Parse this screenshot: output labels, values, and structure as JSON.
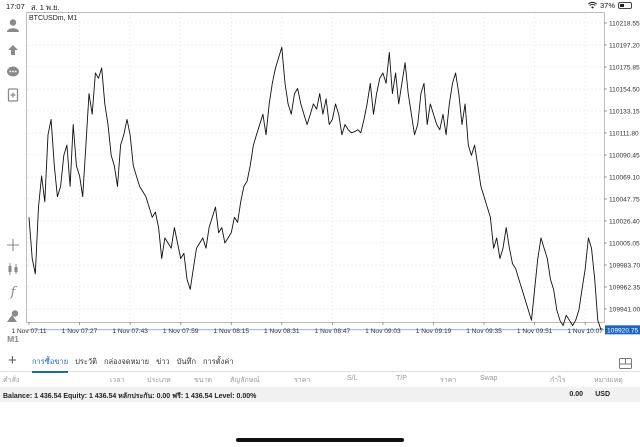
{
  "status_bar": {
    "time": "17:07",
    "date": "ส. 1 พ.ย.",
    "battery": "37%",
    "battery_level": 0.37
  },
  "toolbar": {
    "items": [
      "account-icon",
      "trade-icon",
      "chat-icon",
      "new-order-icon",
      "crosshair-icon",
      "candlestick-icon",
      "indicator-icon",
      "objects-icon",
      "timeframe"
    ],
    "timeframe_label": "M1"
  },
  "chart": {
    "symbol_label": "BTCUSDm, M1",
    "line_color": "#111111",
    "grid_color": "#e6e6e6",
    "bid_line_color": "#1e64c8",
    "current_price": "109920.75",
    "y_ticks": [
      "110218.55",
      "110197.20",
      "110175.85",
      "110154.50",
      "110133.15",
      "110111.80",
      "110090.45",
      "110069.10",
      "110047.75",
      "110026.40",
      "110005.05",
      "109983.70",
      "109962.35",
      "109941.00"
    ],
    "x_ticks": [
      "1 Nov 07:11",
      "1 Nov 07:27",
      "1 Nov 07:43",
      "1 Nov 07:59",
      "1 Nov 08:15",
      "1 Nov 08:31",
      "1 Nov 08:47",
      "1 Nov 09:03",
      "1 Nov 09:19",
      "1 Nov 09:35",
      "1 Nov 09:51",
      "1 Nov 10:07"
    ]
  },
  "chart_data": {
    "type": "line",
    "title": "BTCUSDm, M1",
    "xlabel": "",
    "ylabel": "",
    "ylim": [
      109920,
      110230
    ],
    "grid": true,
    "current_price": 109920.75,
    "y_ticks": [
      110218.55,
      110197.2,
      110175.85,
      110154.5,
      110133.15,
      110111.8,
      110090.45,
      110069.1,
      110047.75,
      110026.4,
      110005.05,
      109983.7,
      109962.35,
      109941.0
    ],
    "x_ticks": [
      "1 Nov 07:11",
      "1 Nov 07:27",
      "1 Nov 07:43",
      "1 Nov 07:59",
      "1 Nov 08:15",
      "1 Nov 08:31",
      "1 Nov 08:47",
      "1 Nov 09:03",
      "1 Nov 09:19",
      "1 Nov 09:35",
      "1 Nov 09:51",
      "1 Nov 10:07"
    ],
    "x_minutes_from_start": [
      0,
      1,
      2,
      3,
      4,
      5,
      6,
      7,
      8,
      9,
      10,
      11,
      12,
      13,
      14,
      15,
      16,
      17,
      18,
      19,
      20,
      21,
      22,
      23,
      24,
      25,
      26,
      27,
      28,
      29,
      30,
      31,
      32,
      33,
      34,
      35,
      36,
      37,
      38,
      39,
      40,
      41,
      42,
      43,
      44,
      45,
      46,
      47,
      48,
      49,
      50,
      51,
      52,
      53,
      54,
      55,
      56,
      57,
      58,
      59,
      60,
      61,
      62,
      63,
      64,
      65,
      66,
      67,
      68,
      69,
      70,
      71,
      72,
      73,
      74,
      75,
      76,
      77,
      78,
      79,
      80,
      81,
      82,
      83,
      84,
      85,
      86,
      87,
      88,
      89,
      90,
      91,
      92,
      93,
      94,
      95,
      96,
      97,
      98,
      99,
      100,
      101,
      102,
      103,
      104,
      105,
      106,
      107,
      108,
      109,
      110,
      111,
      112,
      113,
      114,
      115,
      116,
      117,
      118,
      119,
      120,
      121,
      122,
      123,
      124,
      125,
      126,
      127,
      128,
      129,
      130,
      131,
      132,
      133,
      134,
      135,
      136,
      137,
      138,
      139,
      140,
      141,
      142,
      143,
      144,
      145,
      146,
      147,
      148,
      149,
      150,
      151,
      152,
      153,
      154,
      155,
      156,
      157,
      158,
      159,
      160,
      161,
      162,
      163,
      164,
      165,
      166,
      167,
      168,
      169,
      170,
      171,
      172,
      173,
      174,
      175,
      176,
      177,
      178
    ],
    "values": [
      110030,
      109990,
      109975,
      110040,
      110070,
      110045,
      110110,
      110125,
      110080,
      110050,
      110060,
      110090,
      110100,
      110060,
      110120,
      110080,
      110070,
      110050,
      110100,
      110150,
      110130,
      110170,
      110165,
      110175,
      110140,
      110120,
      110090,
      110080,
      110060,
      110100,
      110110,
      110125,
      110110,
      110080,
      110070,
      110060,
      110055,
      110050,
      110040,
      110030,
      110035,
      110020,
      109990,
      110010,
      110005,
      110000,
      110020,
      110005,
      109990,
      109995,
      109970,
      109960,
      109980,
      110000,
      110005,
      110010,
      110000,
      110020,
      110030,
      110040,
      110015,
      110020,
      110005,
      110010,
      110015,
      110030,
      110025,
      110045,
      110060,
      110065,
      110080,
      110100,
      110110,
      110120,
      110130,
      110110,
      110140,
      110160,
      110175,
      110185,
      110195,
      110160,
      110140,
      110130,
      110150,
      110155,
      110140,
      110130,
      110120,
      110130,
      110140,
      110135,
      110150,
      110130,
      110145,
      110120,
      110125,
      110140,
      110130,
      110110,
      110120,
      110115,
      110112,
      110113,
      110115,
      110112,
      110125,
      110140,
      110160,
      110130,
      110150,
      110165,
      110170,
      110160,
      110190,
      110150,
      110170,
      110140,
      110160,
      110180,
      110150,
      110130,
      110110,
      110120,
      110150,
      110160,
      110120,
      110140,
      110130,
      110120,
      110115,
      110130,
      110110,
      110140,
      110160,
      110170,
      110150,
      110120,
      110140,
      110100,
      110090,
      110100,
      110080,
      110060,
      110050,
      110040,
      110030,
      110000,
      110010,
      109990,
      110000,
      110020,
      110000,
      109985,
      109980,
      109970,
      109960,
      109950,
      109940,
      109930,
      109960,
      109990,
      110010,
      110000,
      109990,
      109970,
      109960,
      109940,
      109930,
      109925,
      109935,
      109930,
      109925,
      109930,
      109940,
      109960,
      109980,
      110010,
      110000,
      109970,
      109930,
      109920.75
    ]
  },
  "tabs": {
    "plus": "+",
    "items": [
      "การซื้อขาย",
      "ประวัติ",
      "กล่องจดหมาย",
      "ข่าว",
      "บันทึก",
      "การตั้งค่า"
    ]
  },
  "columns": [
    "คำสั่ง",
    "เวลา",
    "ประเภท",
    "ขนาด",
    "สัญลักษณ์",
    "ราคา",
    "S/L",
    "T/P",
    "ราคา",
    "Swap",
    "กำไร",
    "หมายเหตุ"
  ],
  "balance": {
    "text": "Balance: 1 436.54 Equity: 1 436.54 หลักประกัน: 0.00 ฟรี: 1 436.54 Level: 0.00%",
    "profit": "0.00",
    "currency": "USD"
  }
}
